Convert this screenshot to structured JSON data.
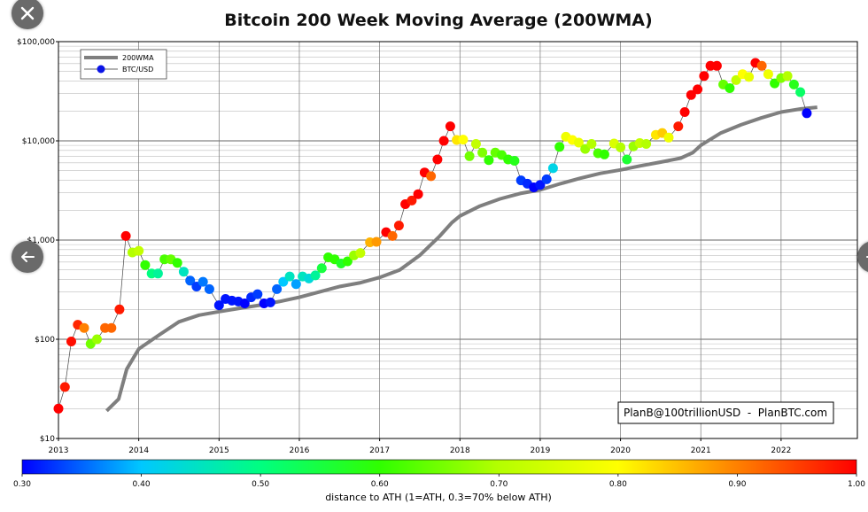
{
  "chart_data": {
    "type": "scatter",
    "title": "Bitcoin 200 Week Moving Average (200WMA)",
    "y_scale": "log",
    "ylim": [
      10,
      100000
    ],
    "y_ticks": [
      {
        "value": 10,
        "label": "$10"
      },
      {
        "value": 100,
        "label": "$100"
      },
      {
        "value": 1000,
        "label": "$1,000"
      },
      {
        "value": 10000,
        "label": "$10,000"
      },
      {
        "value": 100000,
        "label": "$100,000"
      }
    ],
    "xlim": [
      2013.0,
      2022.95
    ],
    "x_ticks": [
      2013,
      2014,
      2015,
      2016,
      2017,
      2018,
      2019,
      2020,
      2021,
      2022
    ],
    "x_tick_labels": [
      "2013",
      "2014",
      "2015",
      "2016",
      "2017",
      "2018",
      "2019",
      "2020",
      "2021",
      "2022"
    ],
    "grid": true,
    "legend": [
      {
        "label": "200WMA",
        "marker": "line",
        "color": "#808080"
      },
      {
        "label": "BTC/USD",
        "marker": "dot",
        "color": "#0a14e6"
      }
    ],
    "annotation": "PlanB@100trillionUSD  -  PlanBTC.com",
    "colorbar": {
      "label": "distance to ATH (1=ATH, 0.3=70% below ATH)",
      "ticks": [
        "0.30",
        "0.40",
        "0.50",
        "0.60",
        "0.70",
        "0.80",
        "0.90",
        "1.00"
      ],
      "stops": [
        "#0000ff",
        "#00c8ff",
        "#00ff80",
        "#30ff00",
        "#b4ff00",
        "#ffff00",
        "#ff8000",
        "#ff0000"
      ]
    },
    "series": [
      {
        "name": "200WMA",
        "points": [
          [
            2013.6,
            19
          ],
          [
            2013.75,
            25
          ],
          [
            2013.85,
            50
          ],
          [
            2014.0,
            80
          ],
          [
            2014.25,
            110
          ],
          [
            2014.5,
            150
          ],
          [
            2014.75,
            175
          ],
          [
            2015.0,
            190
          ],
          [
            2015.25,
            205
          ],
          [
            2015.5,
            220
          ],
          [
            2015.75,
            240
          ],
          [
            2016.0,
            265
          ],
          [
            2016.25,
            300
          ],
          [
            2016.5,
            340
          ],
          [
            2016.75,
            370
          ],
          [
            2017.0,
            420
          ],
          [
            2017.25,
            500
          ],
          [
            2017.5,
            700
          ],
          [
            2017.75,
            1100
          ],
          [
            2017.9,
            1500
          ],
          [
            2018.0,
            1750
          ],
          [
            2018.25,
            2200
          ],
          [
            2018.5,
            2600
          ],
          [
            2018.75,
            2950
          ],
          [
            2019.0,
            3200
          ],
          [
            2019.25,
            3700
          ],
          [
            2019.5,
            4200
          ],
          [
            2019.75,
            4700
          ],
          [
            2020.0,
            5100
          ],
          [
            2020.25,
            5600
          ],
          [
            2020.5,
            6100
          ],
          [
            2020.75,
            6700
          ],
          [
            2020.9,
            7600
          ],
          [
            2021.0,
            9000
          ],
          [
            2021.25,
            12000
          ],
          [
            2021.5,
            14500
          ],
          [
            2021.75,
            17000
          ],
          [
            2022.0,
            19500
          ],
          [
            2022.25,
            21000
          ],
          [
            2022.45,
            21800
          ]
        ]
      },
      {
        "name": "BTC/USD",
        "points": [
          [
            2013.0,
            20,
            1.0
          ],
          [
            2013.08,
            33,
            0.98
          ],
          [
            2013.16,
            95,
            0.99
          ],
          [
            2013.24,
            140,
            0.97
          ],
          [
            2013.32,
            130,
            0.9
          ],
          [
            2013.4,
            90,
            0.65
          ],
          [
            2013.48,
            100,
            0.68
          ],
          [
            2013.58,
            130,
            0.92
          ],
          [
            2013.66,
            130,
            0.92
          ],
          [
            2013.76,
            200,
            0.98
          ],
          [
            2013.84,
            1100,
            1.0
          ],
          [
            2013.92,
            750,
            0.7
          ],
          [
            2014.0,
            780,
            0.72
          ],
          [
            2014.08,
            560,
            0.6
          ],
          [
            2014.16,
            460,
            0.5
          ],
          [
            2014.24,
            460,
            0.48
          ],
          [
            2014.32,
            640,
            0.62
          ],
          [
            2014.4,
            640,
            0.64
          ],
          [
            2014.48,
            590,
            0.6
          ],
          [
            2014.56,
            480,
            0.45
          ],
          [
            2014.64,
            390,
            0.35
          ],
          [
            2014.72,
            340,
            0.33
          ],
          [
            2014.8,
            380,
            0.36
          ],
          [
            2014.88,
            320,
            0.35
          ],
          [
            2015.0,
            220,
            0.31
          ],
          [
            2015.08,
            255,
            0.31
          ],
          [
            2015.16,
            245,
            0.31
          ],
          [
            2015.24,
            240,
            0.31
          ],
          [
            2015.32,
            230,
            0.3
          ],
          [
            2015.4,
            265,
            0.32
          ],
          [
            2015.48,
            285,
            0.33
          ],
          [
            2015.56,
            230,
            0.3
          ],
          [
            2015.64,
            235,
            0.31
          ],
          [
            2015.72,
            320,
            0.35
          ],
          [
            2015.8,
            380,
            0.4
          ],
          [
            2015.88,
            430,
            0.45
          ],
          [
            2015.96,
            360,
            0.38
          ],
          [
            2016.04,
            430,
            0.45
          ],
          [
            2016.12,
            410,
            0.43
          ],
          [
            2016.2,
            440,
            0.48
          ],
          [
            2016.28,
            520,
            0.55
          ],
          [
            2016.36,
            670,
            0.6
          ],
          [
            2016.44,
            640,
            0.6
          ],
          [
            2016.52,
            580,
            0.57
          ],
          [
            2016.6,
            610,
            0.6
          ],
          [
            2016.68,
            700,
            0.68
          ],
          [
            2016.76,
            740,
            0.72
          ],
          [
            2016.88,
            950,
            0.86
          ],
          [
            2016.96,
            960,
            0.88
          ],
          [
            2017.08,
            1200,
            1.0
          ],
          [
            2017.16,
            1100,
            0.92
          ],
          [
            2017.24,
            1400,
            0.98
          ],
          [
            2017.32,
            2300,
            1.0
          ],
          [
            2017.4,
            2500,
            0.98
          ],
          [
            2017.48,
            2900,
            1.0
          ],
          [
            2017.56,
            4800,
            1.0
          ],
          [
            2017.64,
            4400,
            0.92
          ],
          [
            2017.72,
            6500,
            1.0
          ],
          [
            2017.8,
            10000,
            1.0
          ],
          [
            2017.88,
            14000,
            1.0
          ],
          [
            2017.96,
            10200,
            0.82
          ],
          [
            2018.04,
            10300,
            0.8
          ],
          [
            2018.12,
            7000,
            0.65
          ],
          [
            2018.2,
            9300,
            0.72
          ],
          [
            2018.28,
            7600,
            0.66
          ],
          [
            2018.36,
            6400,
            0.6
          ],
          [
            2018.44,
            7600,
            0.64
          ],
          [
            2018.52,
            7200,
            0.62
          ],
          [
            2018.6,
            6500,
            0.6
          ],
          [
            2018.68,
            6300,
            0.58
          ],
          [
            2018.76,
            4000,
            0.33
          ],
          [
            2018.84,
            3700,
            0.32
          ],
          [
            2018.92,
            3400,
            0.3
          ],
          [
            2019.0,
            3600,
            0.31
          ],
          [
            2019.08,
            4100,
            0.33
          ],
          [
            2019.16,
            5300,
            0.42
          ],
          [
            2019.24,
            8700,
            0.6
          ],
          [
            2019.32,
            11000,
            0.78
          ],
          [
            2019.4,
            10200,
            0.8
          ],
          [
            2019.48,
            9600,
            0.77
          ],
          [
            2019.56,
            8300,
            0.68
          ],
          [
            2019.64,
            9300,
            0.7
          ],
          [
            2019.72,
            7500,
            0.62
          ],
          [
            2019.8,
            7300,
            0.6
          ],
          [
            2019.92,
            9400,
            0.75
          ],
          [
            2020.0,
            8600,
            0.7
          ],
          [
            2020.08,
            6500,
            0.56
          ],
          [
            2020.16,
            8800,
            0.68
          ],
          [
            2020.24,
            9500,
            0.72
          ],
          [
            2020.32,
            9300,
            0.7
          ],
          [
            2020.44,
            11500,
            0.82
          ],
          [
            2020.52,
            12000,
            0.84
          ],
          [
            2020.6,
            10800,
            0.78
          ],
          [
            2020.72,
            14000,
            0.98
          ],
          [
            2020.8,
            19500,
            1.0
          ],
          [
            2020.88,
            29000,
            1.0
          ],
          [
            2020.96,
            33000,
            1.0
          ],
          [
            2021.04,
            45000,
            1.0
          ],
          [
            2021.12,
            57000,
            1.0
          ],
          [
            2021.2,
            57000,
            1.0
          ],
          [
            2021.28,
            37000,
            0.64
          ],
          [
            2021.36,
            34000,
            0.6
          ],
          [
            2021.44,
            41000,
            0.72
          ],
          [
            2021.52,
            47000,
            0.8
          ],
          [
            2021.6,
            44000,
            0.77
          ],
          [
            2021.68,
            61000,
            1.0
          ],
          [
            2021.76,
            57000,
            0.92
          ],
          [
            2021.84,
            47000,
            0.78
          ],
          [
            2021.92,
            38000,
            0.6
          ],
          [
            2022.0,
            43000,
            0.66
          ],
          [
            2022.08,
            45000,
            0.7
          ],
          [
            2022.16,
            37000,
            0.58
          ],
          [
            2022.24,
            31000,
            0.52
          ],
          [
            2022.32,
            19000,
            0.3
          ]
        ]
      }
    ]
  },
  "ui": {
    "close_icon": "close-icon",
    "prev_icon": "arrow-left-icon",
    "next_icon": "arrow-right-icon"
  }
}
